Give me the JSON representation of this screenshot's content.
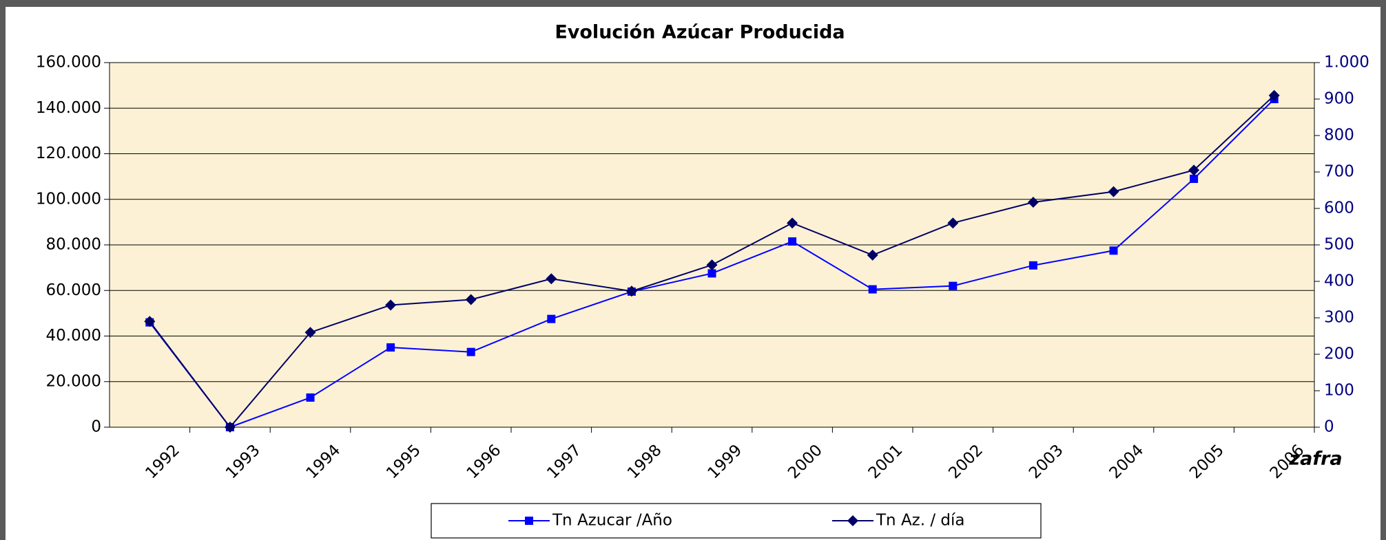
{
  "chart_data": {
    "type": "line",
    "title": "Evolución Azúcar Producida",
    "x_label": "zafra",
    "categories": [
      "1992",
      "1993",
      "1994",
      "1995",
      "1996",
      "1997",
      "1998",
      "1999",
      "2000",
      "2001",
      "2002",
      "2003",
      "2004",
      "2005",
      "2006"
    ],
    "series": [
      {
        "name": "Tn Azucar /Año",
        "color": "#0000ff",
        "marker": "square",
        "axis": "y",
        "values": [
          46000,
          0,
          13000,
          35000,
          33000,
          47500,
          59500,
          67500,
          81500,
          60500,
          62000,
          71000,
          77500,
          109000,
          144000
        ]
      },
      {
        "name": "Tn Az. / día",
        "color": "#000066",
        "marker": "diamond",
        "axis": "y2",
        "values": [
          290,
          0,
          260,
          335,
          350,
          407,
          373,
          445,
          560,
          472,
          560,
          617,
          646,
          705,
          910
        ]
      }
    ],
    "ylim": [
      0,
      160000
    ],
    "yticks": [
      0,
      {
        "value": 20000,
        "label": "20.000"
      },
      {
        "value": 40000,
        "label": "40.000"
      },
      {
        "value": 60000,
        "label": "60.000"
      },
      {
        "value": 80000,
        "label": "80.000"
      },
      {
        "value": 100000,
        "label": "100.000"
      },
      {
        "value": 120000,
        "label": "120.000"
      },
      {
        "value": 140000,
        "label": "140.000"
      },
      {
        "value": 160000,
        "label": "160.000"
      }
    ],
    "y2lim": [
      0,
      1000
    ],
    "y2ticks": [
      0,
      100,
      200,
      300,
      400,
      500,
      600,
      700,
      800,
      900,
      {
        "value": 1000,
        "label": "1.000"
      }
    ],
    "grid": true
  }
}
